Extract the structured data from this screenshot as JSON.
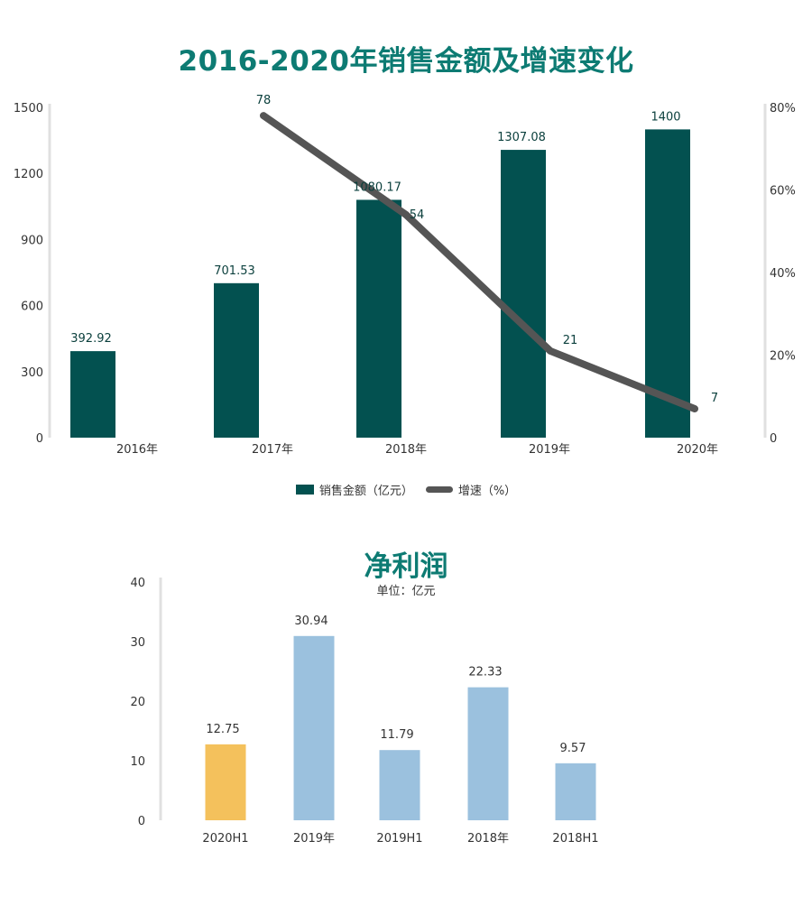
{
  "chart_data": [
    {
      "type": "bar+line",
      "title": "2016-2020年销售金额及增速变化",
      "categories": [
        "2016年",
        "2017年",
        "2018年",
        "2019年",
        "2020年"
      ],
      "series": [
        {
          "name": "销售金额（亿元）",
          "type": "bar",
          "axis": "left",
          "values": [
            392.92,
            701.53,
            1080.17,
            1307.08,
            1400
          ],
          "labels": [
            "392.92",
            "701.53",
            "1080.17",
            "1307.08",
            "1400"
          ],
          "color": "#035150"
        },
        {
          "name": "增速（%）",
          "type": "line",
          "axis": "right",
          "values": [
            null,
            78,
            54,
            21,
            7
          ],
          "labels": [
            "",
            "78",
            "54",
            "21",
            "7"
          ],
          "color": "#555555"
        }
      ],
      "ylim_left": [
        0,
        1500
      ],
      "yticks_left": [
        "0",
        "300",
        "600",
        "900",
        "1200",
        "1500"
      ],
      "ylim_right": [
        0,
        80
      ],
      "yticks_right": [
        "0",
        "20%",
        "40%",
        "60%",
        "80%"
      ],
      "legend": "bottom",
      "grid": false
    },
    {
      "type": "bar",
      "title": "净利润",
      "subtitle": "单位：亿元",
      "categories": [
        "2020H1",
        "2019年",
        "2019H1",
        "2018年",
        "2018H1"
      ],
      "values": [
        12.75,
        30.94,
        11.79,
        22.33,
        9.57
      ],
      "labels": [
        "12.75",
        "30.94",
        "11.79",
        "22.33",
        "9.57"
      ],
      "colors": [
        "#f4c15c",
        "#9bc1de",
        "#9bc1de",
        "#9bc1de",
        "#9bc1de"
      ],
      "ylim": [
        0,
        40
      ],
      "yticks": [
        "0",
        "10",
        "20",
        "30",
        "40"
      ],
      "grid": false
    }
  ]
}
